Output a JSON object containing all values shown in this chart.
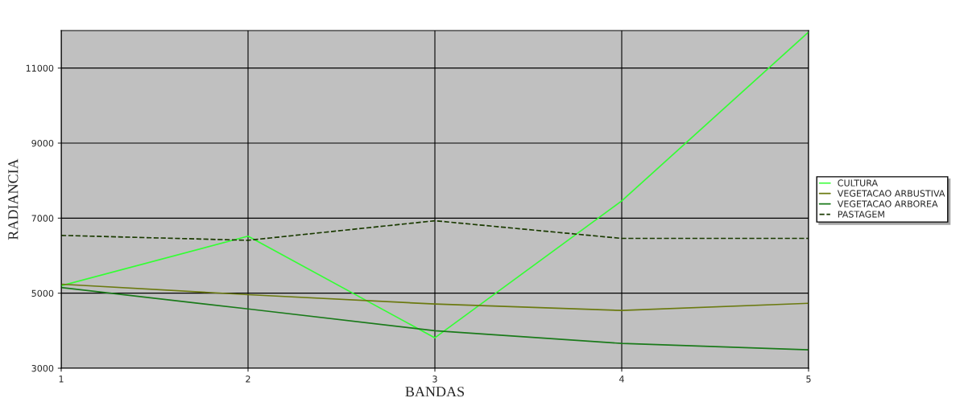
{
  "chart_data": {
    "type": "line",
    "xlabel": "BANDAS",
    "ylabel": "RADIANCIA",
    "x": [
      1,
      2,
      3,
      4,
      5
    ],
    "xlim": [
      1,
      5
    ],
    "xticks": [
      1,
      2,
      3,
      4,
      5
    ],
    "ylim": [
      3000,
      12000
    ],
    "yticks": [
      3000,
      5000,
      7000,
      9000,
      11000
    ],
    "grid": true,
    "legend": "right",
    "marker": "none",
    "series": [
      {
        "name": "CULTURA",
        "color": "#33ff33",
        "values": [
          5200,
          6520,
          3810,
          7460,
          11960
        ]
      },
      {
        "name": "VEGETACAO ARBUSTIVA",
        "color": "#6b7a10",
        "values": [
          5240,
          4960,
          4710,
          4540,
          4730
        ]
      },
      {
        "name": "VEGETACAO ARBOREA",
        "color": "#1a7a1a",
        "values": [
          5150,
          4580,
          4000,
          3660,
          3490
        ]
      },
      {
        "name": "PASTAGEM",
        "color": "#1a3a00",
        "line_style": "dashed",
        "values": [
          6540,
          6410,
          6930,
          6460,
          6460
        ]
      }
    ]
  }
}
